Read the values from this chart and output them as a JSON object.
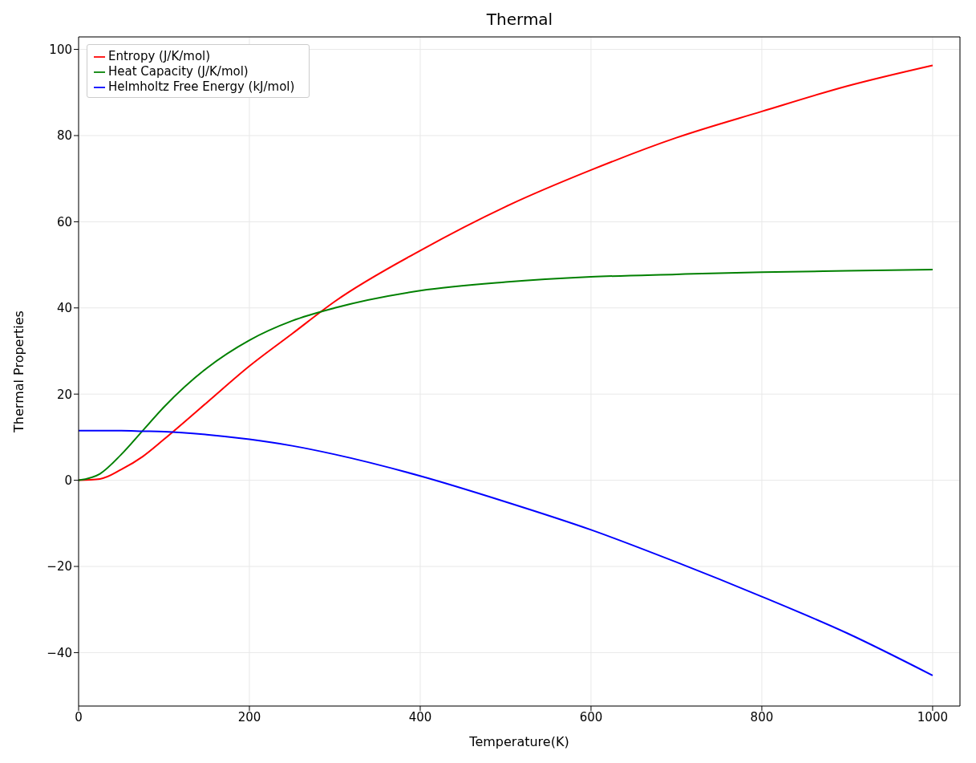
{
  "chart_data": {
    "type": "line",
    "title": "Thermal",
    "xlabel": "Temperature(K)",
    "ylabel": "Thermal Properties",
    "x": [
      0,
      25,
      50,
      75,
      100,
      150,
      200,
      250,
      300,
      400,
      500,
      600,
      700,
      800,
      900,
      1000
    ],
    "series": [
      {
        "name": "Entropy (J/K/mol)",
        "color": "#ff0000",
        "values": [
          0,
          0.3,
          2.5,
          5.5,
          9.5,
          18,
          26.5,
          34,
          41.5,
          53.3,
          63.5,
          72,
          79.5,
          85.6,
          91.5,
          96.3
        ]
      },
      {
        "name": "Heat Capacity (J/K/mol)",
        "color": "#008000",
        "values": [
          0,
          1.5,
          6,
          11.5,
          17,
          26,
          32.5,
          37,
          40,
          44,
          46,
          47.2,
          47.8,
          48.3,
          48.6,
          48.9
        ]
      },
      {
        "name": "Helmholtz Free Energy (kJ/mol)",
        "color": "#0000ff",
        "values": [
          11.5,
          11.5,
          11.5,
          11.4,
          11.3,
          10.6,
          9.5,
          8,
          6,
          1,
          -5,
          -11.5,
          -19,
          -27,
          -35.5,
          -45.3
        ]
      }
    ],
    "xlim": [
      0,
      1032
    ],
    "ylim": [
      -52.4,
      102.9
    ],
    "xticks": [
      0,
      200,
      400,
      600,
      800,
      1000
    ],
    "yticks": [
      -40,
      -20,
      0,
      20,
      40,
      60,
      80,
      100
    ],
    "grid": true,
    "legend": "top left",
    "marker": "none",
    "line_style": "solid"
  }
}
